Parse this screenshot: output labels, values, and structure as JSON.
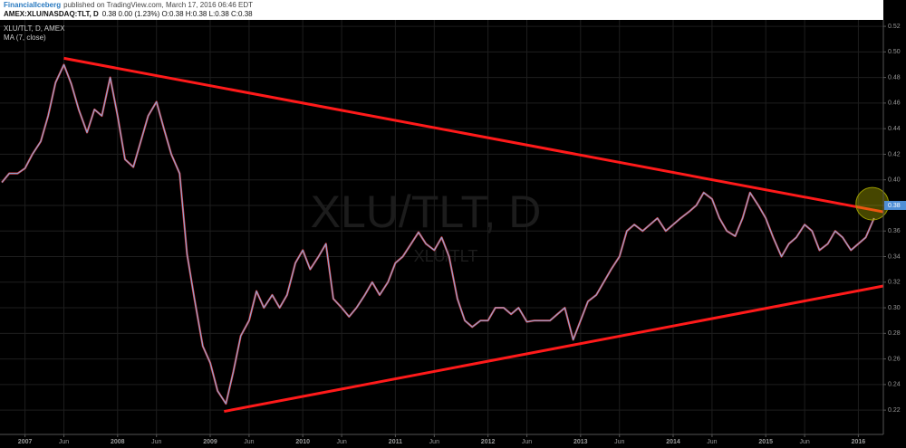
{
  "chart_data": {
    "type": "line",
    "publisher": "FinancialIceberg",
    "published_text": "published on TradingView.com, March 17, 2016 06:46 EDT",
    "symbol_line": "AMEX:XLU/NASDAQ:TLT, D",
    "quote_line": "0.38 0.00 (1.23%) O:0.38 H:0.38 L:0.38 C:0.38",
    "watermark": "XLU/TLT, D",
    "watermark_sub": "XLU/TLT",
    "last_value": 0.38,
    "grid": true,
    "xlim": [
      2006.73,
      2016.27
    ],
    "ylim": [
      0.201,
      0.525
    ],
    "xticks": [
      2007,
      {
        "value": 2007.42,
        "label": "Jun"
      },
      2008,
      {
        "value": 2008.42,
        "label": "Jun"
      },
      2009,
      {
        "value": 2009.42,
        "label": "Jun"
      },
      2010,
      {
        "value": 2010.42,
        "label": "Jun"
      },
      2011,
      {
        "value": 2011.42,
        "label": "Jun"
      },
      2012,
      {
        "value": 2012.42,
        "label": "Jun"
      },
      2013,
      {
        "value": 2013.42,
        "label": "Jun"
      },
      2014,
      {
        "value": 2014.42,
        "label": "Jun"
      },
      2015,
      {
        "value": 2015.42,
        "label": "Jun"
      },
      2016
    ],
    "yticks": [
      0.22,
      0.24,
      0.26,
      0.28,
      {
        "value": 0.3,
        "label": "0.30"
      },
      0.32,
      0.34,
      0.36,
      0.38,
      {
        "value": 0.4,
        "label": "0.40"
      },
      0.42,
      0.44,
      0.46,
      0.48,
      {
        "value": 0.5,
        "label": "0.50"
      },
      0.52
    ],
    "x": [
      2006.75,
      2006.83,
      2006.92,
      2007,
      2007.08,
      2007.17,
      2007.25,
      2007.33,
      2007.42,
      2007.5,
      2007.58,
      2007.67,
      2007.75,
      2007.83,
      2007.92,
      2008,
      2008.08,
      2008.17,
      2008.25,
      2008.33,
      2008.42,
      2008.5,
      2008.58,
      2008.67,
      2008.75,
      2008.83,
      2008.92,
      2009,
      2009.08,
      2009.17,
      2009.25,
      2009.33,
      2009.42,
      2009.5,
      2009.58,
      2009.67,
      2009.75,
      2009.83,
      2009.92,
      2010,
      2010.08,
      2010.17,
      2010.25,
      2010.33,
      2010.42,
      2010.5,
      2010.58,
      2010.67,
      2010.75,
      2010.83,
      2010.92,
      2011,
      2011.08,
      2011.17,
      2011.25,
      2011.33,
      2011.42,
      2011.5,
      2011.58,
      2011.67,
      2011.75,
      2011.83,
      2011.92,
      2012,
      2012.08,
      2012.17,
      2012.25,
      2012.33,
      2012.42,
      2012.5,
      2012.58,
      2012.67,
      2012.75,
      2012.83,
      2012.92,
      2013,
      2013.08,
      2013.17,
      2013.25,
      2013.33,
      2013.42,
      2013.5,
      2013.58,
      2013.67,
      2013.75,
      2013.83,
      2013.92,
      2014,
      2014.08,
      2014.17,
      2014.25,
      2014.33,
      2014.42,
      2014.5,
      2014.58,
      2014.67,
      2014.75,
      2014.83,
      2014.92,
      2015,
      2015.08,
      2015.17,
      2015.25,
      2015.33,
      2015.42,
      2015.5,
      2015.58,
      2015.67,
      2015.75,
      2015.83,
      2015.92,
      2016,
      2016.08,
      2016.17
    ],
    "series": [
      {
        "name": "MA (7, close)",
        "color": "#e0393e",
        "values": [
          0.398,
          0.405,
          0.405,
          0.409,
          0.42,
          0.43,
          0.45,
          0.476,
          0.49,
          0.475,
          0.455,
          0.437,
          0.455,
          0.45,
          0.48,
          0.45,
          0.416,
          0.41,
          0.43,
          0.45,
          0.461,
          0.44,
          0.42,
          0.405,
          0.342,
          0.307,
          0.27,
          0.257,
          0.235,
          0.225,
          0.25,
          0.278,
          0.29,
          0.313,
          0.3,
          0.31,
          0.3,
          0.31,
          0.335,
          0.345,
          0.33,
          0.34,
          0.35,
          0.307,
          0.3,
          0.293,
          0.3,
          0.31,
          0.32,
          0.31,
          0.32,
          0.335,
          0.34,
          0.35,
          0.359,
          0.35,
          0.345,
          0.355,
          0.34,
          0.307,
          0.29,
          0.285,
          0.29,
          0.29,
          0.3,
          0.3,
          0.295,
          0.3,
          0.289,
          0.29,
          0.29,
          0.29,
          0.295,
          0.3,
          0.275,
          0.29,
          0.305,
          0.31,
          0.32,
          0.33,
          0.34,
          0.36,
          0.365,
          0.36,
          0.365,
          0.37,
          0.36,
          0.365,
          0.37,
          0.375,
          0.38,
          0.39,
          0.385,
          0.37,
          0.36,
          0.356,
          0.37,
          0.39,
          0.38,
          0.37,
          0.355,
          0.34,
          0.35,
          0.355,
          0.365,
          0.36,
          0.345,
          0.35,
          0.36,
          0.355,
          0.345,
          0.35,
          0.355,
          0.37
        ]
      },
      {
        "name": "XLU/TLT, D, AMEX",
        "color": "#7fb3e6",
        "values": [
          0.398,
          0.405,
          0.405,
          0.409,
          0.42,
          0.43,
          0.45,
          0.476,
          0.49,
          0.475,
          0.455,
          0.437,
          0.455,
          0.45,
          0.48,
          0.45,
          0.416,
          0.41,
          0.43,
          0.45,
          0.461,
          0.44,
          0.42,
          0.405,
          0.342,
          0.307,
          0.27,
          0.257,
          0.235,
          0.225,
          0.25,
          0.278,
          0.29,
          0.313,
          0.3,
          0.31,
          0.3,
          0.31,
          0.335,
          0.345,
          0.33,
          0.34,
          0.35,
          0.307,
          0.3,
          0.293,
          0.3,
          0.31,
          0.32,
          0.31,
          0.32,
          0.335,
          0.34,
          0.35,
          0.359,
          0.35,
          0.345,
          0.355,
          0.34,
          0.307,
          0.29,
          0.285,
          0.29,
          0.29,
          0.3,
          0.3,
          0.295,
          0.3,
          0.289,
          0.29,
          0.29,
          0.29,
          0.295,
          0.3,
          0.275,
          0.29,
          0.305,
          0.31,
          0.32,
          0.33,
          0.34,
          0.36,
          0.365,
          0.36,
          0.365,
          0.37,
          0.36,
          0.365,
          0.37,
          0.375,
          0.38,
          0.39,
          0.385,
          0.37,
          0.36,
          0.356,
          0.37,
          0.39,
          0.38,
          0.37,
          0.355,
          0.34,
          0.35,
          0.355,
          0.365,
          0.36,
          0.345,
          0.35,
          0.36,
          0.355,
          0.345,
          0.35,
          0.355,
          0.37
        ]
      }
    ],
    "trendlines": [
      {
        "color": "#ff1a1a",
        "x": [
          2007.42,
          2016.27
        ],
        "values": [
          0.495,
          0.375
        ]
      },
      {
        "color": "#ff1a1a",
        "x": [
          2009.15,
          2016.27
        ],
        "values": [
          0.219,
          0.317
        ]
      }
    ]
  }
}
